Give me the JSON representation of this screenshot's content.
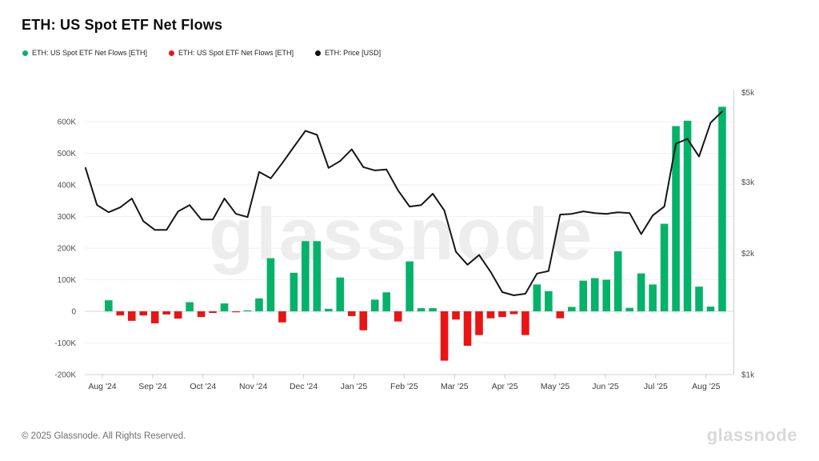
{
  "header": {
    "title": "ETH: US Spot ETF Net Flows"
  },
  "legend": {
    "items": [
      {
        "label": "ETH: US Spot ETF Net Flows [ETH]",
        "color": "#05B269"
      },
      {
        "label": "ETH: US Spot ETF Net Flows [ETH]",
        "color": "#EA1414"
      },
      {
        "label": "ETH: Price [USD]",
        "color": "#111111"
      }
    ]
  },
  "watermark": "glassnode",
  "footer": {
    "copyright": "© 2025 Glassnode. All Rights Reserved.",
    "brand": "glassnode"
  },
  "chart_data": {
    "type": "bar",
    "title": "ETH: US Spot ETF Net Flows",
    "cadence": "weekly",
    "x_tick_labels": [
      "Aug '24",
      "Sep '24",
      "Oct '24",
      "Nov '24",
      "Dec '24",
      "Jan '25",
      "Feb '25",
      "Mar '25",
      "Apr '25",
      "May '25",
      "Jun '25",
      "Jul '25",
      "Aug '25"
    ],
    "left_axis": {
      "unit": "ETH",
      "tick_labels": [
        "600K",
        "500K",
        "400K",
        "300K",
        "200K",
        "100K",
        "0",
        "-100K",
        "-200K"
      ],
      "tick_values": [
        600,
        500,
        400,
        300,
        200,
        100,
        0,
        -100,
        -200
      ],
      "range_k": [
        -250,
        690
      ],
      "grid": true
    },
    "right_axis": {
      "unit": "USD",
      "scale": "log",
      "tick_labels": [
        "$5k",
        "$3k",
        "$2k",
        "$1k"
      ],
      "tick_values": [
        5000,
        3000,
        2000,
        1000
      ],
      "range_usd": [
        1000,
        5000
      ]
    },
    "series": [
      {
        "name": "ETH: US Spot ETF Net Flows [ETH]",
        "type": "bar",
        "axis": "left",
        "positive_color": "#05B269",
        "negative_color": "#EA1414",
        "values_k_eth": [
          35,
          -13,
          -30,
          -13,
          -38,
          -10,
          -23,
          29,
          -18,
          -5,
          25,
          -3,
          3,
          41,
          168,
          -35,
          122,
          222,
          222,
          8,
          107,
          -15,
          -60,
          37,
          60,
          -32,
          158,
          10,
          10,
          -156,
          -26,
          -109,
          -75,
          -22,
          -18,
          -9,
          -75,
          85,
          64,
          -22,
          14,
          97,
          105,
          100,
          190,
          11,
          120,
          85,
          277,
          586,
          603,
          78,
          15,
          647
        ]
      },
      {
        "name": "ETH: Price [USD]",
        "type": "line",
        "axis": "right",
        "color": "#161616",
        "x_offset_weeks": -2,
        "values_usd": [
          3253,
          2632,
          2526,
          2597,
          2732,
          2401,
          2283,
          2283,
          2538,
          2632,
          2423,
          2423,
          2732,
          2503,
          2457,
          3179,
          3065,
          3344,
          3668,
          4021,
          3929,
          3253,
          3383,
          3617,
          3268,
          3208,
          3223,
          2861,
          2609,
          2632,
          2808,
          2550,
          2016,
          1872,
          1979,
          1796,
          1601,
          1572,
          1586,
          1780,
          1805,
          2492,
          2503,
          2538,
          2514,
          2503,
          2526,
          2514,
          2230,
          2480,
          2609,
          3736,
          3840,
          3471,
          4211,
          4491
        ]
      }
    ],
    "legend_position": "top-left",
    "background": "#ffffff"
  }
}
